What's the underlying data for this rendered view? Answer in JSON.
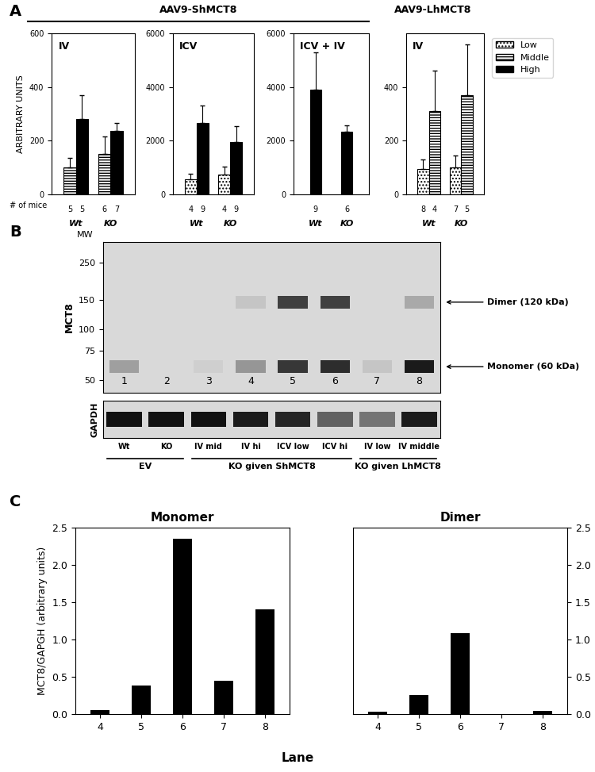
{
  "panel_labels": [
    "A",
    "B",
    "C"
  ],
  "panel_a": {
    "headers": [
      {
        "text": "AAV9-ShMCT8",
        "charts": [
          0,
          2
        ]
      },
      {
        "text": "AAV9-LhMCT8",
        "charts": [
          3,
          3
        ]
      }
    ],
    "count_label": "# of mice",
    "legend_entries": [
      {
        "name": "Low",
        "color": "#ffffff"
      },
      {
        "name": "Middle",
        "color": "#ffffff"
      },
      {
        "name": "High",
        "color": "#000000"
      }
    ]
  },
  "chart_data": [
    {
      "type": "bar",
      "title": "IV",
      "ylabel": "ARBITRARY UNITS",
      "categories": [
        "Wt",
        "KO"
      ],
      "ylim": [
        0,
        600
      ],
      "yticks": [
        0,
        200,
        400,
        600
      ],
      "series": [
        {
          "name": "Middle",
          "color": "#ffffff",
          "values": [
            100,
            150
          ],
          "errors": [
            35,
            65
          ],
          "n": [
            5,
            6
          ]
        },
        {
          "name": "High",
          "color": "#000000",
          "values": [
            280,
            237
          ],
          "errors": [
            90,
            30
          ],
          "n": [
            5,
            7
          ]
        }
      ]
    },
    {
      "type": "bar",
      "title": "ICV",
      "categories": [
        "Wt",
        "KO"
      ],
      "ylim": [
        0,
        6000
      ],
      "yticks": [
        0,
        2000,
        4000,
        6000
      ],
      "series": [
        {
          "name": "Low",
          "color": "#ffffff",
          "values": [
            550,
            750
          ],
          "errors": [
            220,
            280
          ],
          "n": [
            4,
            4
          ]
        },
        {
          "name": "High",
          "color": "#000000",
          "values": [
            2650,
            1950
          ],
          "errors": [
            650,
            600
          ],
          "n": [
            9,
            9
          ]
        }
      ]
    },
    {
      "type": "bar",
      "title": "ICV + IV",
      "categories": [
        "Wt",
        "KO"
      ],
      "ylim": [
        0,
        6000
      ],
      "yticks": [
        0,
        2000,
        4000,
        6000
      ],
      "series": [
        {
          "name": "High",
          "color": "#000000",
          "values": [
            3900,
            2330
          ],
          "errors": [
            1400,
            250
          ],
          "n": [
            9,
            6
          ]
        }
      ]
    },
    {
      "type": "bar",
      "title": "IV",
      "categories": [
        "Wt",
        "KO"
      ],
      "ylim": [
        0,
        600
      ],
      "yticks": [
        0,
        200,
        400
      ],
      "series": [
        {
          "name": "Low",
          "color": "#ffffff",
          "values": [
            95,
            100
          ],
          "errors": [
            35,
            45
          ],
          "n": [
            8,
            7
          ]
        },
        {
          "name": "Middle",
          "color": "#ffffff",
          "values": [
            310,
            370
          ],
          "errors": [
            150,
            190
          ],
          "n": [
            4,
            5
          ]
        }
      ]
    },
    {
      "type": "bar",
      "title": "Monomer",
      "categories": [
        "4",
        "5",
        "6",
        "7",
        "8"
      ],
      "values": [
        0.05,
        0.38,
        2.35,
        0.45,
        1.4
      ],
      "color": "#000000",
      "ylim": [
        0,
        2.5
      ],
      "yticks": [
        {
          "value": 0,
          "label": "0.0"
        },
        {
          "value": 0.5,
          "label": "0.5"
        },
        {
          "value": 1,
          "label": "1.0"
        },
        {
          "value": 1.5,
          "label": "1.5"
        },
        {
          "value": 2,
          "label": "2.0"
        },
        {
          "value": 2.5,
          "label": "2.5"
        }
      ]
    },
    {
      "type": "bar",
      "title": "Dimer",
      "categories": [
        "4",
        "5",
        "6",
        "7",
        "8"
      ],
      "values": [
        0.03,
        0.26,
        1.08,
        0.0,
        0.04
      ],
      "color": "#000000",
      "ylim": [
        0,
        2.5
      ],
      "yticks": [
        {
          "value": 0,
          "label": "0.0"
        },
        {
          "value": 0.5,
          "label": "0.5"
        },
        {
          "value": 1,
          "label": "1.0"
        },
        {
          "value": 1.5,
          "label": "1.5"
        },
        {
          "value": 2,
          "label": "2.0"
        },
        {
          "value": 2.5,
          "label": "2.5"
        }
      ]
    }
  ],
  "panel_c": {
    "xlabel": "Lane",
    "ylabel": "MCT8/GAPGH (arbitrary units)"
  },
  "blot": {
    "ylabel": "MCT8",
    "mw_label": "MW",
    "mw_ticks": [
      250,
      150,
      100,
      75,
      50
    ],
    "mw_range": [
      42,
      330
    ],
    "loading_label": "GAPDH",
    "lanes": [
      "1",
      "2",
      "3",
      "4",
      "5",
      "6",
      "7",
      "8"
    ],
    "lane_labels": [
      "Wt",
      "KO",
      "IV mid",
      "IV hi",
      "ICV low",
      "ICV hi",
      "IV low",
      "IV middle"
    ],
    "groups": [
      {
        "label": "EV",
        "lanes": [
          1,
          2
        ]
      },
      {
        "label": "KO given ShMCT8",
        "lanes": [
          3,
          6
        ]
      },
      {
        "label": "KO given LhMCT8",
        "lanes": [
          7,
          8
        ]
      }
    ],
    "bands": [
      {
        "name": "Dimer (120 kDa)",
        "mw": 145,
        "intensity": [
          0,
          0,
          0,
          0.1,
          0.8,
          0.8,
          0,
          0.25
        ]
      },
      {
        "name": "Monomer (60 kDa)",
        "mw": 60,
        "intensity": [
          0.3,
          0,
          0.05,
          0.35,
          0.85,
          0.9,
          0.1,
          1.0
        ]
      }
    ],
    "gapdh_intensity": [
      1,
      1,
      1,
      0.95,
      0.9,
      0.6,
      0.5,
      0.95
    ]
  }
}
